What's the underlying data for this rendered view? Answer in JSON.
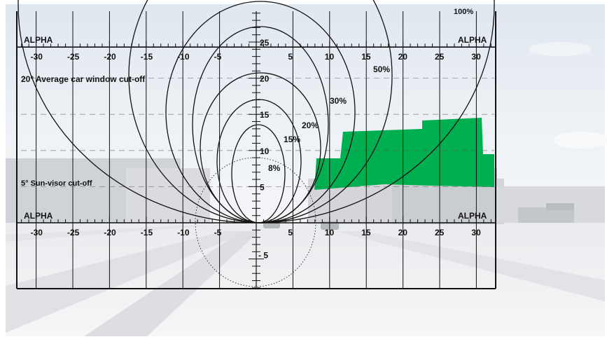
{
  "corner_labels": {
    "top_left": "ALPHA",
    "top_right": "ALPHA",
    "bottom_left": "ALPHA",
    "bottom_right": "ALPHA"
  },
  "top_partial_label": "100%",
  "x_ticks": [
    "-30",
    "-25",
    "-20",
    "-15",
    "-10",
    "-5",
    "5",
    "10",
    "15",
    "20",
    "25",
    "30"
  ],
  "y_ticks_up": [
    "25",
    "20",
    "15",
    "10",
    "5"
  ],
  "y_ticks_down": [
    "- 5"
  ],
  "cutoffs": {
    "car_window": "20° Average car window cut-off",
    "sun_visor": "5° Sun-visor cut-off"
  },
  "contours": [
    {
      "label": "50%"
    },
    {
      "label": "30%"
    },
    {
      "label": "20%"
    },
    {
      "label": "15%"
    },
    {
      "label": "8%"
    }
  ],
  "colors": {
    "overlay_green": "#00b050",
    "line": "#111111"
  }
}
